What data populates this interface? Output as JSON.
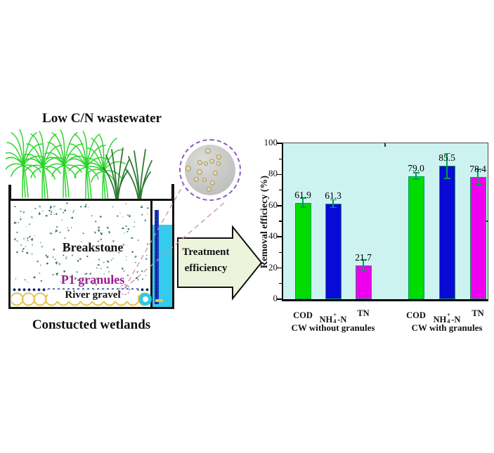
{
  "diagram": {
    "title": "Low C/N wastewater",
    "caption": "Constucted wetlands",
    "labels": {
      "breakstone": "Breakstone",
      "granules": "P1 granules",
      "gravel": "River gravel"
    },
    "colors": {
      "plant_bright": "#2BD42B",
      "plant_dark": "#2E7A34",
      "speckle_dark": "#336A6A",
      "speckle_light": "#6C9A98",
      "granule_text": "#9A1D8F",
      "dot_row": "#0B2B6B",
      "gravel_ring": "#E8C44A",
      "water": "#35CBEC",
      "pipe": "#1834CC"
    }
  },
  "inset": {
    "border_color": "#8A5FB8",
    "granule_fill": "#DCD2A2",
    "granule_edge": "#A69A5E",
    "granules": [
      [
        -3,
        -27,
        8
      ],
      [
        12,
        -19,
        7
      ],
      [
        -15,
        -11,
        7
      ],
      [
        -6,
        -9,
        6
      ],
      [
        2,
        -13,
        7
      ],
      [
        12,
        -9,
        6
      ],
      [
        -31,
        -2,
        8
      ],
      [
        -15,
        3,
        8
      ],
      [
        7,
        4,
        7
      ],
      [
        -20,
        13,
        7
      ],
      [
        -8,
        14,
        6
      ],
      [
        3,
        18,
        7
      ],
      [
        -2,
        27,
        7
      ]
    ]
  },
  "arrow": {
    "label_line1": "Treatment",
    "label_line2": "efficiency",
    "fill": "#EDF4DC"
  },
  "chart_data": {
    "type": "bar",
    "title": "",
    "xlabel": "",
    "ylabel": "Removal efficiecy (%)",
    "ylim": [
      0,
      100
    ],
    "yticks": [
      0,
      20,
      40,
      60,
      80,
      100
    ],
    "grid": false,
    "legend": "none",
    "plot_bg": "#CDF3F1",
    "bar_colors": [
      "#00DC00",
      "#0A0AD8",
      "#EE00EE"
    ],
    "bar_border": "#00A050",
    "error_color": "#00A050",
    "groups": [
      {
        "label": "CW without granules",
        "categories": [
          "COD",
          "NH4+-N",
          "TN"
        ],
        "values": [
          61.9,
          61.3,
          21.7
        ],
        "errors": [
          3,
          2.5,
          3.5
        ]
      },
      {
        "label": "CW with granules",
        "categories": [
          "COD",
          "NH4+-N",
          "TN"
        ],
        "values": [
          79.0,
          85.5,
          78.4
        ],
        "errors": [
          2,
          8,
          5
        ]
      }
    ],
    "value_labels": [
      "61.9",
      "61.3",
      "21.7",
      "79.0",
      "85.5",
      "78.4"
    ]
  }
}
